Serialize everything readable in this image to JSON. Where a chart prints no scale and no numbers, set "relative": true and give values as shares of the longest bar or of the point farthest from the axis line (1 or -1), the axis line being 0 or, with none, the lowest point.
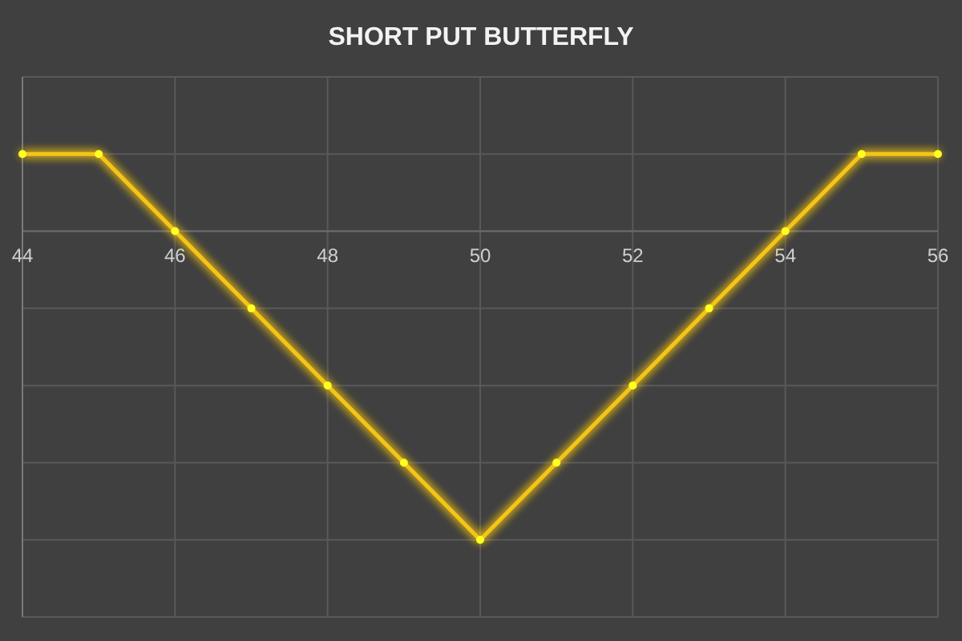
{
  "chart_data": {
    "type": "line",
    "title": "SHORT PUT BUTTERFLY",
    "relative": true,
    "x": [
      44,
      45,
      46,
      47,
      48,
      49,
      50,
      51,
      52,
      53,
      54,
      55,
      56
    ],
    "xlim": [
      44,
      56
    ],
    "xticks": [
      44,
      46,
      48,
      50,
      52,
      54,
      56
    ],
    "series": [
      {
        "color": "#f5c518",
        "values": [
          0.25,
          0.25,
          0,
          -0.25,
          -0.5,
          -0.75,
          -1,
          -0.75,
          -0.5,
          -0.25,
          0,
          0.25,
          0.25
        ]
      }
    ],
    "grid": true,
    "marker": "circle",
    "line_style": "solid",
    "tick_labels": "x"
  }
}
